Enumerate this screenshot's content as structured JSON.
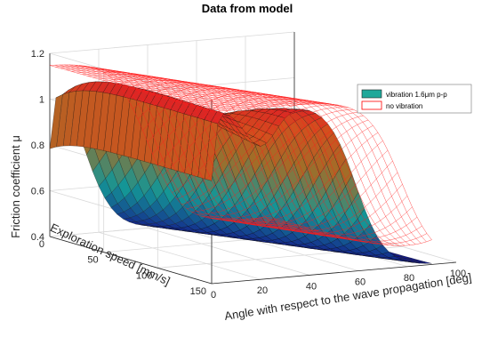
{
  "chart_data": {
    "type": "surface",
    "title": "Data from model",
    "xlabel": "Angle with respect to the wave propagation [deg]",
    "ylabel": "Exploration speed [mm/s]",
    "zlabel": "Friction coefficient μ",
    "x_ticks": [
      0,
      20,
      40,
      60,
      80,
      100
    ],
    "y_ticks": [
      0,
      50,
      100,
      150
    ],
    "z_ticks": [
      "0.4",
      "0.6",
      "0.8",
      "1",
      "1.2"
    ],
    "xlim": [
      0,
      100
    ],
    "ylim": [
      0,
      150
    ],
    "zlim": [
      0.4,
      1.2
    ],
    "grid": true,
    "legend_position": "top-right",
    "series": [
      {
        "name": "vibration 1.6μm p-p",
        "style": "colormap surface (blue → teal → orange → red)",
        "color": "#1fa89a",
        "x_range_deg": [
          0,
          90
        ],
        "y_range_mm_s": [
          0,
          150
        ],
        "mu_at_angle_0_deg": 0.85,
        "mu_high_angle_low_speed": 0.4,
        "mu_max": 1.15
      },
      {
        "name": "no vibration",
        "style": "red wireframe mesh",
        "color": "#ff0000",
        "x_range_deg": [
          0,
          90
        ],
        "y_range_mm_s": [
          0,
          150
        ],
        "mu_plateau": 1.15,
        "mu_high_angle": 0.4
      }
    ]
  }
}
